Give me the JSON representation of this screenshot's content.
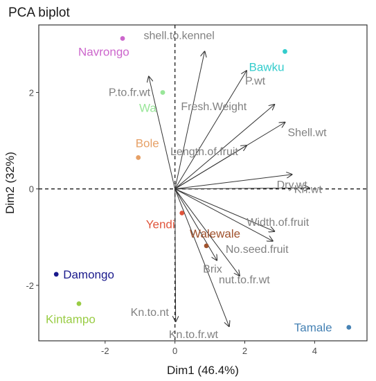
{
  "chart_data": {
    "type": "scatter",
    "title": "PCA biplot",
    "xlabel": "Dim1 (46.4%)",
    "ylabel": "Dim2 (32%)",
    "xlim": [
      -3.9,
      5.5
    ],
    "ylim": [
      -3.15,
      3.4
    ],
    "x_ticks": [
      -2,
      0,
      2,
      4
    ],
    "y_ticks": [
      -2,
      0,
      2
    ],
    "x_tick_labels": [
      "-2",
      "0",
      "2",
      "4"
    ],
    "y_tick_labels": [
      "-2",
      "0",
      "2"
    ],
    "grid": false,
    "reference_lines": {
      "x": 0,
      "y": 0,
      "style": "dashed"
    },
    "individuals": [
      {
        "label": "Navrongo",
        "x": -1.5,
        "y": 3.12,
        "color": "#CC66CC"
      },
      {
        "label": "Bawku",
        "x": 3.15,
        "y": 2.85,
        "color": "#33CCCC"
      },
      {
        "label": "Wa",
        "x": -0.35,
        "y": 2.0,
        "color": "#99E699"
      },
      {
        "label": "Bole",
        "x": -1.05,
        "y": 0.65,
        "color": "#E6A066"
      },
      {
        "label": "Yendi",
        "x": 0.2,
        "y": -0.5,
        "color": "#E0553C"
      },
      {
        "label": "Walewale",
        "x": 0.9,
        "y": -1.18,
        "color": "#A0522D"
      },
      {
        "label": "Damongo",
        "x": -3.4,
        "y": -1.77,
        "color": "#1A1A8C"
      },
      {
        "label": "Kintampo",
        "x": -2.75,
        "y": -2.38,
        "color": "#99CC44"
      },
      {
        "label": "Tamale",
        "x": 4.98,
        "y": -2.87,
        "color": "#4682B4"
      }
    ],
    "variables": [
      {
        "label": "shell.to.kennel",
        "x": 0.85,
        "y": 2.85
      },
      {
        "label": "P.to.fr.wt",
        "x": -0.75,
        "y": 2.33
      },
      {
        "label": "P.wt",
        "x": 2.05,
        "y": 2.45
      },
      {
        "label": "Fresh.Weight",
        "x": 2.85,
        "y": 1.75
      },
      {
        "label": "Shell.wt",
        "x": 3.15,
        "y": 1.38
      },
      {
        "label": "Length.of.fruit",
        "x": 2.05,
        "y": 0.9
      },
      {
        "label": "Dry.wt",
        "x": 3.35,
        "y": 0.3
      },
      {
        "label": "Kn.wt",
        "x": 3.85,
        "y": 0.02
      },
      {
        "label": "Width.of.fruit",
        "x": 2.85,
        "y": -0.88
      },
      {
        "label": "No.seed.fruit",
        "x": 2.8,
        "y": -1.08
      },
      {
        "label": "Brix",
        "x": 1.2,
        "y": -1.48
      },
      {
        "label": "nut.to.fr.wt",
        "x": 1.85,
        "y": -1.8
      },
      {
        "label": "Kn.to.fr.wt",
        "x": 1.55,
        "y": -2.85
      },
      {
        "label": "Kn.to.nt",
        "x": 0.02,
        "y": -2.75
      }
    ],
    "arrow_color": "#333333",
    "variable_label_color": "#808080"
  }
}
